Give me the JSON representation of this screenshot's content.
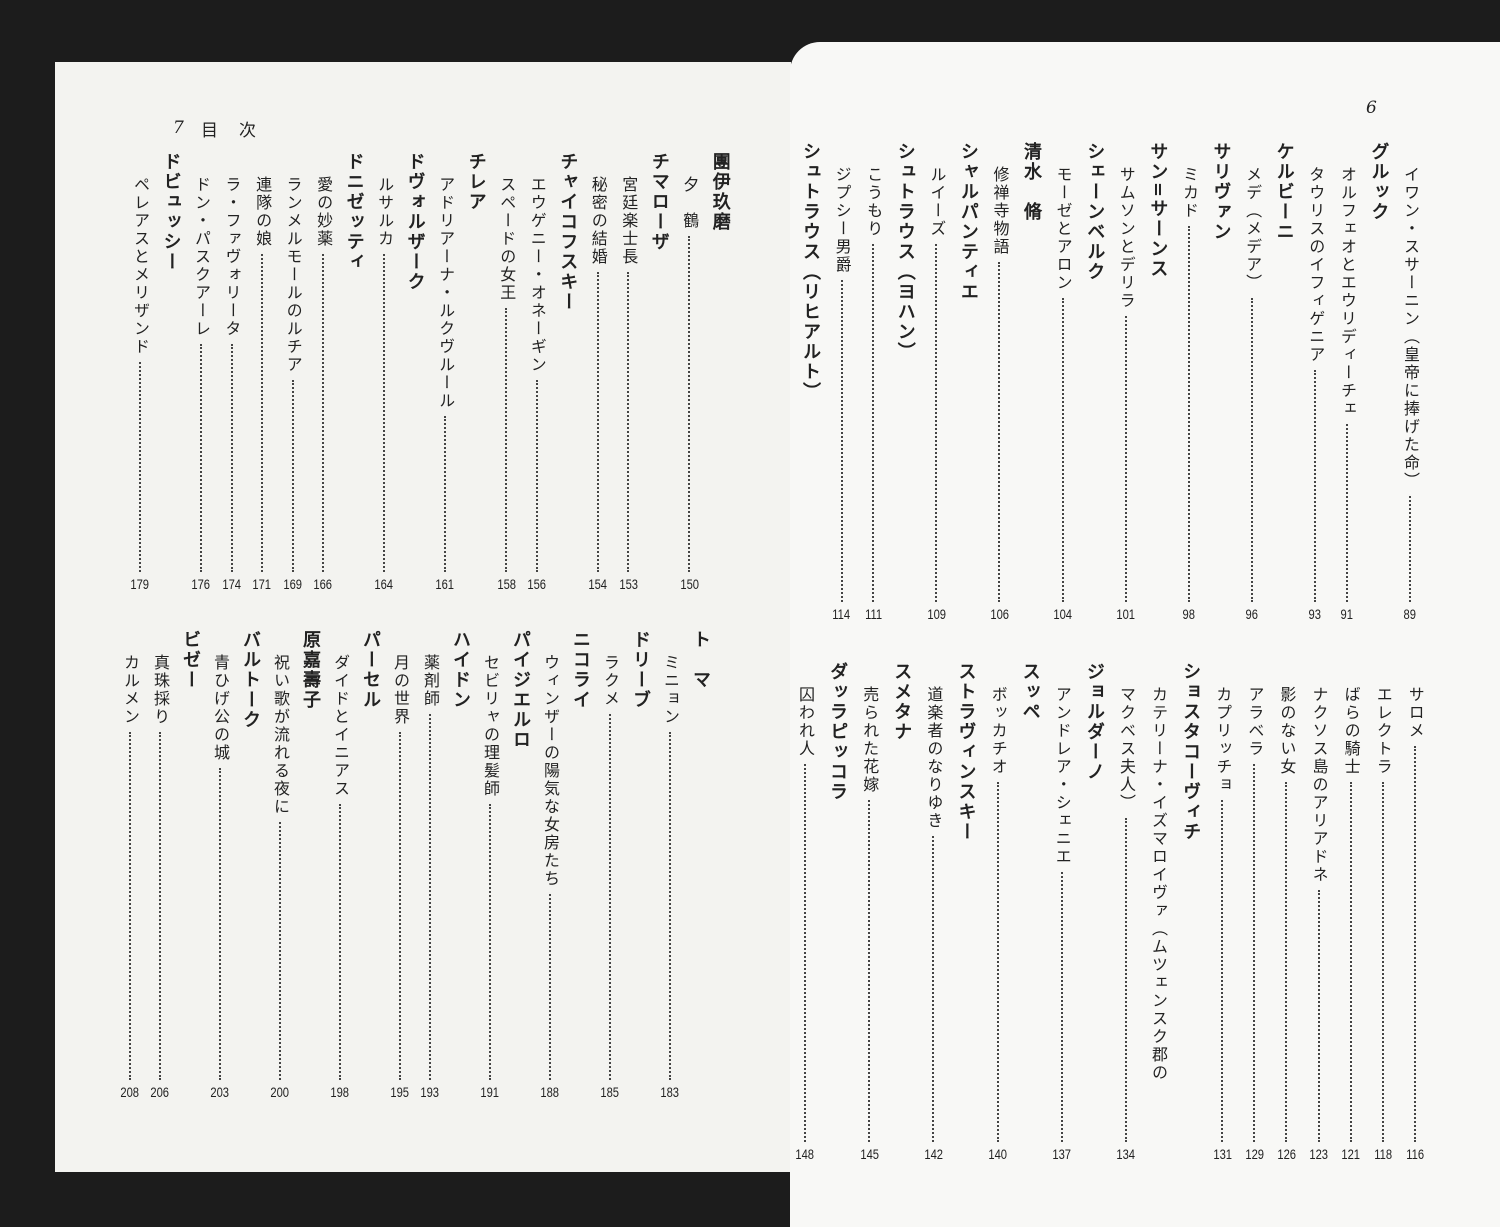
{
  "left_page": {
    "folio": "7",
    "running_head": "目　次",
    "sections": [
      {
        "items": [
          {
            "type": "composer",
            "text": "團伊玖磨"
          },
          {
            "type": "work",
            "text": "夕　鶴",
            "page": "150"
          },
          {
            "type": "composer",
            "text": "チマローザ"
          },
          {
            "type": "work",
            "text": "宮廷楽士長",
            "page": "153"
          },
          {
            "type": "work",
            "text": "秘密の結婚",
            "page": "154"
          },
          {
            "type": "composer",
            "text": "チャイコフスキー"
          },
          {
            "type": "work",
            "text": "エウゲニー・オネーギン",
            "page": "156"
          },
          {
            "type": "work",
            "text": "スペードの女王",
            "page": "158"
          },
          {
            "type": "composer",
            "text": "チレア"
          },
          {
            "type": "work",
            "text": "アドリアーナ・ルクヴルール",
            "page": "161"
          },
          {
            "type": "composer",
            "text": "ドヴォルザーク"
          },
          {
            "type": "work",
            "text": "ルサルカ",
            "page": "164"
          },
          {
            "type": "composer",
            "text": "ドニゼッティ"
          },
          {
            "type": "work",
            "text": "愛の妙薬",
            "page": "166"
          },
          {
            "type": "work",
            "text": "ランメルモールのルチア",
            "page": "169"
          },
          {
            "type": "work",
            "text": "連隊の娘",
            "page": "171"
          },
          {
            "type": "work",
            "text": "ラ・ファヴォリータ",
            "page": "174"
          },
          {
            "type": "work",
            "text": "ドン・パスクアーレ",
            "page": "176"
          },
          {
            "type": "composer",
            "text": "ドビュッシー"
          },
          {
            "type": "work",
            "text": "ペレアスとメリザンド",
            "page": "179"
          }
        ]
      },
      {
        "items": [
          {
            "type": "composer",
            "text": "ト　マ"
          },
          {
            "type": "work",
            "text": "ミニョン",
            "page": "183"
          },
          {
            "type": "composer",
            "text": "ドリーブ"
          },
          {
            "type": "work",
            "text": "ラクメ",
            "page": "185"
          },
          {
            "type": "composer",
            "text": "ニコライ"
          },
          {
            "type": "work",
            "text": "ウィンザーの陽気な女房たち",
            "page": "188"
          },
          {
            "type": "composer",
            "text": "パイジエルロ"
          },
          {
            "type": "work",
            "text": "セビリャの理髪師",
            "page": "191"
          },
          {
            "type": "composer",
            "text": "ハイドン"
          },
          {
            "type": "work",
            "text": "薬剤師",
            "page": "193"
          },
          {
            "type": "work",
            "text": "月の世界",
            "page": "195"
          },
          {
            "type": "composer",
            "text": "パーセル"
          },
          {
            "type": "work",
            "text": "ダイドとイニアス",
            "page": "198"
          },
          {
            "type": "composer",
            "text": "原嘉壽子"
          },
          {
            "type": "work",
            "text": "祝い歌が流れる夜に",
            "page": "200"
          },
          {
            "type": "composer",
            "text": "バルトーク"
          },
          {
            "type": "work",
            "text": "青ひげ公の城",
            "page": "203"
          },
          {
            "type": "composer",
            "text": "ビゼー"
          },
          {
            "type": "work",
            "text": "真珠採り",
            "page": "206"
          },
          {
            "type": "work",
            "text": "カルメン",
            "page": "208"
          }
        ]
      }
    ]
  },
  "right_page": {
    "folio": "6",
    "sections": [
      {
        "items": [
          {
            "type": "work",
            "text": "イワン・スサーニン（皇帝に捧げた命）",
            "page": "89"
          },
          {
            "type": "composer",
            "text": "グルック"
          },
          {
            "type": "work",
            "text": "オルフェオとエウリディーチェ",
            "page": "91"
          },
          {
            "type": "work",
            "text": "タウリスのイフィゲニア",
            "page": "93"
          },
          {
            "type": "composer",
            "text": "ケルビーニ"
          },
          {
            "type": "work",
            "text": "メデ（メデア）",
            "page": "96"
          },
          {
            "type": "composer",
            "text": "サリヴァン"
          },
          {
            "type": "work",
            "text": "ミカド",
            "page": "98"
          },
          {
            "type": "composer",
            "text": "サン=サーンス"
          },
          {
            "type": "work",
            "text": "サムソンとデリラ",
            "page": "101"
          },
          {
            "type": "composer",
            "text": "シェーンベルク"
          },
          {
            "type": "work",
            "text": "モーゼとアロン",
            "page": "104"
          },
          {
            "type": "composer",
            "text": "清水　脩"
          },
          {
            "type": "work",
            "text": "修禅寺物語",
            "page": "106"
          },
          {
            "type": "composer",
            "text": "シャルパンティエ"
          },
          {
            "type": "work",
            "text": "ルイーズ",
            "page": "109"
          },
          {
            "type": "composer",
            "text": "シュトラウス（ヨハン）"
          },
          {
            "type": "work",
            "text": "こうもり",
            "page": "111"
          },
          {
            "type": "work",
            "text": "ジプシー男爵",
            "page": "114"
          },
          {
            "type": "composer",
            "text": "シュトラウス（リヒアルト）"
          }
        ]
      },
      {
        "items": [
          {
            "type": "work",
            "text": "サロメ",
            "page": "116"
          },
          {
            "type": "work",
            "text": "エレクトラ",
            "page": "118"
          },
          {
            "type": "work",
            "text": "ばらの騎士",
            "page": "121"
          },
          {
            "type": "work",
            "text": "ナクソス島のアリアドネ",
            "page": "123"
          },
          {
            "type": "work",
            "text": "影のない女",
            "page": "126"
          },
          {
            "type": "work",
            "text": "アラベラ",
            "page": "129"
          },
          {
            "type": "work",
            "text": "カプリッチョ",
            "page": "131"
          },
          {
            "type": "composer",
            "text": "ショスタコーヴィチ"
          },
          {
            "type": "work",
            "text": "カテリーナ・イズマロイヴァ（ムツェンスク郡の"
          },
          {
            "type": "work",
            "text": "マクベス夫人）",
            "page": "134"
          },
          {
            "type": "composer",
            "text": "ジョルダーノ"
          },
          {
            "type": "work",
            "text": "アンドレア・シェニエ",
            "page": "137"
          },
          {
            "type": "composer",
            "text": "スッペ"
          },
          {
            "type": "work",
            "text": "ボッカチオ",
            "page": "140"
          },
          {
            "type": "composer",
            "text": "ストラヴィンスキー"
          },
          {
            "type": "work",
            "text": "道楽者のなりゆき",
            "page": "142"
          },
          {
            "type": "composer",
            "text": "スメタナ"
          },
          {
            "type": "work",
            "text": "売られた花嫁",
            "page": "145"
          },
          {
            "type": "composer",
            "text": "ダッラピッコラ"
          },
          {
            "type": "work",
            "text": "囚われ人",
            "page": "148"
          }
        ]
      }
    ]
  }
}
